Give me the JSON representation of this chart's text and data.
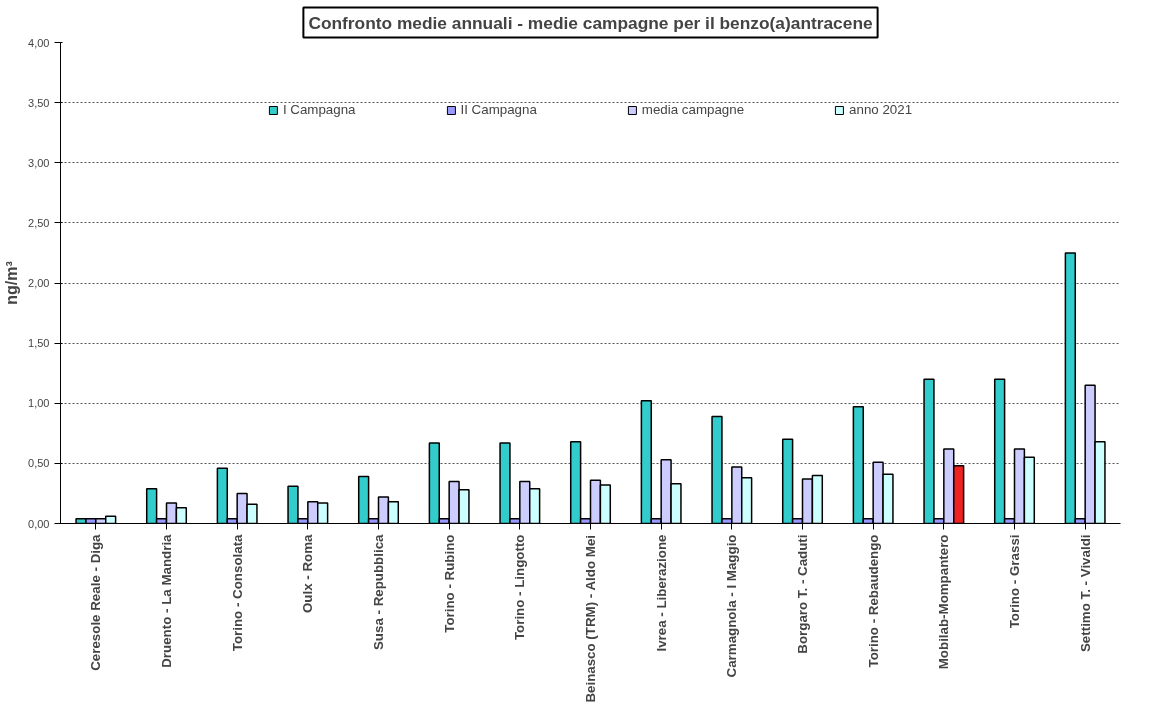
{
  "chart_data": {
    "type": "bar",
    "title": "Confronto medie annuali - medie campagne per il benzo(a)antracene",
    "ylabel": "ng/m³",
    "categories": [
      "Ceresole Reale - Diga",
      "Druento - La Mandria",
      "Torino - Consolata",
      "Oulx - Roma",
      "Susa - Repubblica",
      "Torino - Rubino",
      "Torino - Lingotto",
      "Beinasco (TRM) - Aldo Mei",
      "Ivrea - Liberazione",
      "Carmagnola - I Maggio",
      "Borgaro T. - Caduti",
      "Torino - Rebaudengo",
      "Mobilab-Mompantero",
      "Torino - Grassi",
      "Settimo T. - Vivaldi"
    ],
    "series": [
      {
        "name": "I Campagna",
        "color": "#33cccc",
        "values": [
          0.04,
          0.29,
          0.46,
          0.31,
          0.39,
          0.67,
          0.67,
          0.68,
          1.02,
          0.89,
          0.7,
          0.97,
          1.2,
          1.2,
          2.25
        ]
      },
      {
        "name": "II Campagna",
        "color": "#9999ff",
        "values": [
          0.04,
          0.04,
          0.04,
          0.04,
          0.04,
          0.04,
          0.04,
          0.04,
          0.04,
          0.04,
          0.04,
          0.04,
          0.04,
          0.04,
          0.04
        ]
      },
      {
        "name": "media campagne",
        "color": "#ccccff",
        "values": [
          0.04,
          0.17,
          0.25,
          0.18,
          0.22,
          0.35,
          0.35,
          0.36,
          0.53,
          0.47,
          0.37,
          0.51,
          0.62,
          0.62,
          1.15
        ]
      },
      {
        "name": "anno 2021",
        "color": "#ccffff",
        "colors": [
          "#ccffff",
          "#ccffff",
          "#ccffff",
          "#ccffff",
          "#ccffff",
          "#ccffff",
          "#ccffff",
          "#ccffff",
          "#ccffff",
          "#ccffff",
          "#ccffff",
          "#ccffff",
          "#ee2222",
          "#ccffff",
          "#ccffff"
        ],
        "values": [
          0.06,
          0.13,
          0.16,
          0.17,
          0.18,
          0.28,
          0.29,
          0.32,
          0.33,
          0.38,
          0.4,
          0.41,
          0.48,
          0.55,
          0.68
        ]
      }
    ],
    "ylim": [
      0,
      4
    ],
    "yticks": [
      {
        "value": 0,
        "label": "0,00"
      },
      {
        "value": 0.5,
        "label": "0,50"
      },
      {
        "value": 1,
        "label": "1,00"
      },
      {
        "value": 1.5,
        "label": "1,50"
      },
      {
        "value": 2,
        "label": "2,00"
      },
      {
        "value": 2.5,
        "label": "2,50"
      },
      {
        "value": 3,
        "label": "3,00"
      },
      {
        "value": 3.5,
        "label": "3,50"
      },
      {
        "value": 4,
        "label": "4,00"
      }
    ],
    "grid": "y",
    "legend": "top"
  }
}
